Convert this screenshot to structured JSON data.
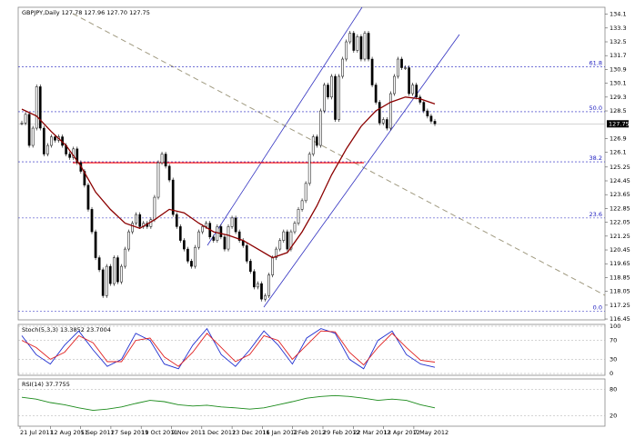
{
  "chart_data": {
    "type": "candlestick",
    "title": "GBPJPY,Daily  127.78 127.96 127.70 127.75",
    "dates": [
      "21 Jul 2011",
      "12 Aug 2011",
      "5 Sep 2011",
      "27 Sep 2011",
      "19 Oct 2011",
      "9 Nov 2011",
      "1 Dec 2011",
      "23 Dec 2011",
      "16 Jan 2012",
      "7 Feb 2012",
      "29 Feb 2012",
      "22 Mar 2012",
      "13 Apr 2012",
      "7 May 2012"
    ],
    "ylim": [
      116.4,
      134.5
    ],
    "yticks": [
      134.1,
      133.3,
      132.5,
      131.7,
      130.9,
      130.1,
      129.3,
      128.5,
      126.9,
      126.1,
      125.25,
      124.45,
      123.65,
      122.85,
      122.05,
      121.25,
      120.45,
      119.65,
      118.85,
      118.05,
      117.25,
      116.45
    ],
    "last_price": 127.75,
    "closes": [
      127.8,
      128.3,
      126.5,
      127.5,
      129.9,
      127.5,
      126.0,
      126.5,
      127.0,
      126.8,
      127.0,
      126.5,
      126.0,
      125.8,
      126.3,
      125.5,
      125.0,
      124.2,
      122.8,
      121.5,
      120.0,
      119.3,
      117.8,
      119.5,
      118.5,
      120.0,
      118.6,
      119.5,
      120.5,
      121.5,
      122.0,
      122.5,
      121.8,
      122.0,
      121.8,
      122.2,
      123.5,
      125.5,
      126.0,
      125.3,
      124.5,
      122.5,
      121.8,
      121.0,
      120.5,
      119.8,
      119.5,
      120.6,
      121.5,
      121.8,
      122.0,
      121.2,
      121.0,
      121.8,
      121.2,
      120.5,
      121.8,
      122.3,
      121.5,
      121.0,
      120.7,
      119.8,
      119.2,
      118.3,
      118.5,
      117.6,
      117.8,
      119.0,
      120.0,
      120.5,
      121.0,
      121.5,
      120.5,
      121.5,
      122.0,
      122.8,
      123.3,
      124.3,
      126.0,
      127.0,
      126.5,
      128.5,
      130.0,
      129.3,
      130.5,
      128.0,
      130.5,
      131.5,
      132.5,
      133.0,
      132.0,
      132.8,
      131.5,
      133.0,
      131.5,
      130.0,
      129.0,
      127.8,
      128.0,
      127.5,
      129.5,
      130.5,
      131.5,
      131.0,
      131.0,
      129.5,
      130.0,
      129.3,
      129.0,
      128.5,
      128.2,
      127.9,
      127.75
    ],
    "moving_average": {
      "color": "#8b0000",
      "values": [
        128.6,
        128.2,
        127.3,
        126.5,
        125.3,
        123.8,
        122.8,
        122.0,
        121.7,
        122.2,
        122.8,
        122.6,
        122.0,
        121.5,
        121.3,
        121.0,
        120.5,
        120.0,
        120.3,
        121.5,
        123.0,
        124.8,
        126.3,
        127.6,
        128.5,
        129.0,
        129.3,
        129.2,
        128.9
      ]
    },
    "fibonacci": [
      {
        "label": "0.0",
        "value": 116.9
      },
      {
        "label": "23.6",
        "value": 122.3
      },
      {
        "label": "38.2",
        "value": 125.55
      },
      {
        "label": "50.0",
        "value": 128.45
      },
      {
        "label": "61.8",
        "value": 131.05
      }
    ],
    "horizontal_line": {
      "value": 125.5,
      "color": "#ff0000"
    },
    "stochastic": {
      "label": "Stoch(5,3,3) 13.3852 23.7004",
      "ylim": [
        0,
        100
      ],
      "yticks": [
        100,
        70,
        30,
        0
      ],
      "series": [
        {
          "color": "#2030d0",
          "values": [
            80,
            40,
            20,
            60,
            90,
            50,
            15,
            30,
            85,
            70,
            20,
            10,
            60,
            95,
            40,
            15,
            50,
            90,
            60,
            20,
            75,
            95,
            85,
            30,
            10,
            70,
            90,
            40,
            20,
            13
          ]
        },
        {
          "color": "#e02020",
          "values": [
            70,
            55,
            30,
            45,
            80,
            65,
            25,
            25,
            70,
            75,
            35,
            15,
            45,
            85,
            55,
            25,
            40,
            80,
            70,
            30,
            60,
            90,
            88,
            45,
            18,
            55,
            85,
            55,
            28,
            24
          ]
        }
      ]
    },
    "rsi": {
      "label": "RSI(14) 37.7755",
      "color": "#1a8a1a",
      "ylim": [
        0,
        100
      ],
      "yticks": [
        80,
        20
      ],
      "values": [
        62,
        58,
        50,
        45,
        38,
        32,
        35,
        40,
        48,
        55,
        52,
        45,
        42,
        44,
        40,
        38,
        35,
        38,
        45,
        52,
        60,
        64,
        66,
        64,
        60,
        55,
        58,
        55,
        45,
        38
      ]
    }
  }
}
